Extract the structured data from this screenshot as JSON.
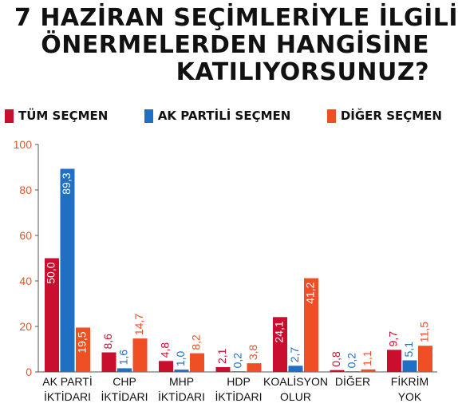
{
  "title_lines": [
    "7 HAZİRAN SEÇİMLERİYLE İLGİLİ",
    "ÖNERMELERDEN HANGİSİNE",
    "KATILIYORSUNUZ?"
  ],
  "colors": {
    "red": "#c8102e",
    "blue": "#1f6fc5",
    "orange": "#ef4f24",
    "axis_text": "#e0582a"
  },
  "chart_data": {
    "type": "bar",
    "title": "7 HAZİRAN SEÇİMLERİYLE İLGİLİ ÖNERMELERDEN HANGİSİNE KATILIYORSUNUZ?",
    "ylim": [
      0,
      100
    ],
    "yticks": [
      "0",
      "20",
      "40",
      "60",
      "80",
      "100"
    ],
    "grid": false,
    "legend_position": "top",
    "categories": [
      [
        "AK PARTİ",
        "İKTİDARI"
      ],
      [
        "CHP",
        "İKTİDARI"
      ],
      [
        "MHP",
        "İKTİDARI"
      ],
      [
        "HDP",
        "İKTİDARI"
      ],
      [
        "KOALİSYON",
        "OLUR"
      ],
      [
        "DİĞER"
      ],
      [
        "FİKRİM",
        "YOK"
      ]
    ],
    "series": [
      {
        "name": "TÜM SEÇMEN",
        "color": "#c8102e",
        "values": [
          50.0,
          8.6,
          4.8,
          2.1,
          24.1,
          0.8,
          9.7
        ],
        "labels": [
          "50,0",
          "8,6",
          "4,8",
          "2,1",
          "24,1",
          "0,8",
          "9,7"
        ]
      },
      {
        "name": "AK PARTİLİ SEÇMEN",
        "color": "#1f6fc5",
        "values": [
          89.3,
          1.6,
          1.0,
          0.2,
          2.7,
          0.2,
          5.1
        ],
        "labels": [
          "89,3",
          "1,6",
          "1,0",
          "0,2",
          "2,7",
          "0,2",
          "5,1"
        ]
      },
      {
        "name": "DİĞER SEÇMEN",
        "color": "#ef4f24",
        "values": [
          19.5,
          14.7,
          8.2,
          3.8,
          41.2,
          1.1,
          11.5
        ],
        "labels": [
          "19,5",
          "14,7",
          "8,2",
          "3,8",
          "41,2",
          "1,1",
          "11,5"
        ]
      }
    ]
  }
}
